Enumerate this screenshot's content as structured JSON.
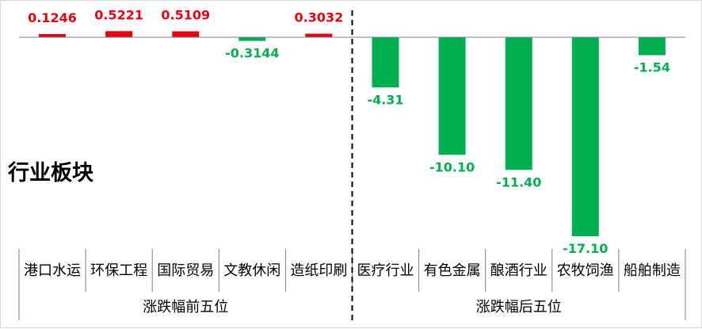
{
  "side_title": "行业板块",
  "colors": {
    "positive": "#e60012",
    "negative": "#00b050",
    "axis": "#7f7f7f",
    "divider": "#000000"
  },
  "chart_data": {
    "type": "bar",
    "categories": [
      "港口水运",
      "环保工程",
      "国际贸易",
      "文教休闲",
      "造纸印刷",
      "医疗行业",
      "有色金属",
      "酿酒行业",
      "农牧饲渔",
      "船舶制造"
    ],
    "values": [
      0.1246,
      0.5221,
      0.5109,
      -0.3144,
      0.3032,
      -4.31,
      -10.1,
      -11.4,
      -17.1,
      -1.54
    ],
    "value_labels": [
      "0.1246",
      "0.5221",
      "0.5109",
      "-0.3144",
      "0.3032",
      "-4.31",
      "-10.10",
      "-11.40",
      "-17.10",
      "-1.54"
    ],
    "groups": [
      {
        "label": "涨跌幅前五位",
        "start": 0,
        "end": 5
      },
      {
        "label": "涨跌幅后五位",
        "start": 5,
        "end": 10
      }
    ],
    "ylim": [
      -17.1,
      0.6
    ],
    "grid": false,
    "legend": "none"
  }
}
